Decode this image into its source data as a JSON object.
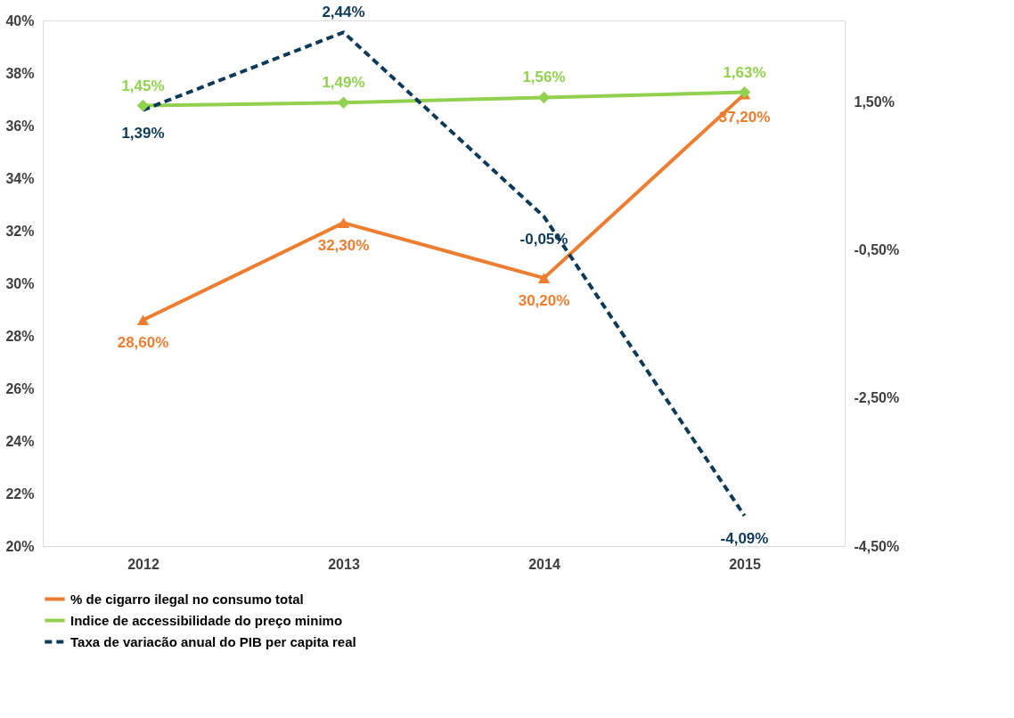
{
  "chart_data": {
    "type": "line",
    "categories": [
      "2012",
      "2013",
      "2014",
      "2015"
    ],
    "series": [
      {
        "name": "% de cigarro ilegal no consumo total",
        "color": "#ed7d31",
        "values": [
          28.6,
          32.3,
          30.2,
          37.2
        ],
        "value_labels": [
          "28,60%",
          "32,30%",
          "30,20%",
          "37,20%"
        ],
        "marker": "triangle",
        "line_style": "solid"
      },
      {
        "name": "Indice de accessibilidade do preço minimo",
        "color": "#92d050",
        "values": [
          1.45,
          1.49,
          1.56,
          1.63
        ],
        "value_labels": [
          "1,45%",
          "1,49%",
          "1,56%",
          "1,63%"
        ],
        "marker": "diamond",
        "line_style": "solid",
        "axis": "y2"
      },
      {
        "name": "Taxa de variacão anual do PIB per capita real",
        "color": "#0e3a5a",
        "values": [
          1.39,
          2.44,
          -0.05,
          -4.09
        ],
        "value_labels": [
          "1,39%",
          "2,44%",
          "-0,05%",
          "-4,09%"
        ],
        "marker": "none",
        "line_style": "dashed",
        "axis": "y2"
      }
    ],
    "ylim": [
      20,
      40
    ],
    "yticks": [
      {
        "value": 20,
        "label": "20%"
      },
      {
        "value": 22,
        "label": "22%"
      },
      {
        "value": 24,
        "label": "24%"
      },
      {
        "value": 26,
        "label": "26%"
      },
      {
        "value": 28,
        "label": "28%"
      },
      {
        "value": 30,
        "label": "30%"
      },
      {
        "value": 32,
        "label": "32%"
      },
      {
        "value": 34,
        "label": "34%"
      },
      {
        "value": 36,
        "label": "36%"
      },
      {
        "value": 38,
        "label": "38%"
      },
      {
        "value": 40,
        "label": "40%"
      }
    ],
    "y2lim": [
      -4.5,
      2.6
    ],
    "y2ticks": [
      {
        "value": -4.5,
        "label": "-4,50%"
      },
      {
        "value": -2.5,
        "label": "-2,50%"
      },
      {
        "value": -0.5,
        "label": "-0,50%"
      },
      {
        "value": 1.5,
        "label": "1,50%"
      }
    ],
    "grid": false,
    "legend": "bottom"
  }
}
